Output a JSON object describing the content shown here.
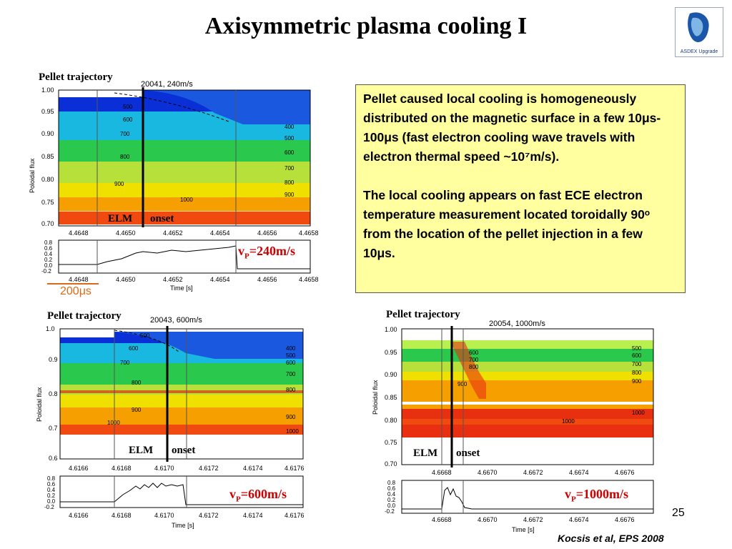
{
  "title": "Axisymmetric plasma cooling I",
  "logo": {
    "text": "ASDEX Upgrade",
    "icon": "asdex-upgrade-logo-icon"
  },
  "info_box": {
    "paragraph1": "Pellet caused local cooling is homogeneously distributed on the magnetic surface in a few 10μs-100μs (fast electron cooling wave travels with electron thermal speed ~10⁷m/s).",
    "paragraph2": "The local cooling appears on fast ECE electron temperature measurement located toroidally 90ᵒ from the location of the pellet injection in a few 10μs."
  },
  "scale_label": "200μs",
  "page_number": "25",
  "citation": "Kocsis et al, EPS 2008",
  "chart_data": [
    {
      "type": "heatmap",
      "title": "20041,   240m/s",
      "annotation": "Pellet trajectory",
      "elm_label": "ELM",
      "onset_label": "onset",
      "velocity": {
        "prefix": "v",
        "sub": "P",
        "value": "=240m/s"
      },
      "ylabel": "Poloidal flux",
      "xlabel": "Time [s]",
      "y_ticks": [
        "1.00",
        "0.95",
        "0.90",
        "0.85",
        "0.80",
        "0.75",
        "0.70"
      ],
      "x_ticks": [
        "4.4648",
        "4.4650",
        "4.4652",
        "4.4654",
        "4.4656",
        "4.4658"
      ],
      "trace_y_ticks": [
        "0.8",
        "0.6",
        "0.4",
        "0.2",
        "0.0",
        "-0.2"
      ],
      "contour_labels": [
        "500",
        "600",
        "700",
        "800",
        "900",
        "1000",
        "400",
        "500",
        "600",
        "700",
        "800",
        "900"
      ]
    },
    {
      "type": "heatmap",
      "title": "20043,   600m/s",
      "annotation": "Pellet trajectory",
      "elm_label": "ELM",
      "onset_label": "onset",
      "velocity": {
        "prefix": "v",
        "sub": "P",
        "value": "=600m/s"
      },
      "ylabel": "Poloidal flux",
      "xlabel": "Time [s]",
      "y_ticks": [
        "1.0",
        "0.9",
        "0.8",
        "0.7",
        "0.6"
      ],
      "x_ticks": [
        "4.6166",
        "4.6168",
        "4.6170",
        "4.6172",
        "4.6174",
        "4.6176"
      ],
      "trace_y_ticks": [
        "0.8",
        "0.6",
        "0.4",
        "0.2",
        "0.0",
        "-0.2"
      ],
      "contour_labels": [
        "500",
        "600",
        "700",
        "800",
        "900",
        "1000",
        "400",
        "500",
        "600",
        "700",
        "800",
        "900",
        "1000"
      ]
    },
    {
      "type": "heatmap",
      "title": "20054,   1000m/s",
      "annotation": "Pellet trajectory",
      "elm_label": "ELM",
      "onset_label": "onset",
      "velocity": {
        "prefix": "v",
        "sub": "P",
        "value": "=1000m/s"
      },
      "ylabel": "Poloidal flux",
      "xlabel": "Time [s]",
      "y_ticks": [
        "1.00",
        "0.95",
        "0.90",
        "0.85",
        "0.80",
        "0.75",
        "0.70"
      ],
      "x_ticks": [
        "4.6668",
        "4.6670",
        "4.6672",
        "4.6674",
        "4.6676"
      ],
      "trace_y_ticks": [
        "0.8",
        "0.6",
        "0.4",
        "0.2",
        "0.0",
        "-0.2"
      ],
      "contour_labels": [
        "600",
        "700",
        "800",
        "900",
        "1000",
        "500",
        "600",
        "700",
        "800",
        "900",
        "1000"
      ]
    }
  ]
}
